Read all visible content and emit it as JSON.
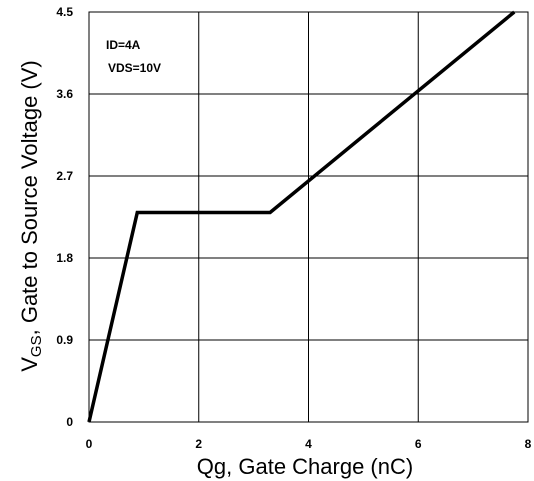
{
  "chart_data": {
    "type": "line",
    "xlabel": "Qg, Gate Charge (nC)",
    "ylabel": {
      "prefix": "V",
      "subscript": "GS",
      "suffix": ", Gate to Source Voltage (V)"
    },
    "xlim": [
      0,
      8
    ],
    "ylim": [
      0,
      4.5
    ],
    "x_ticks": [
      "0",
      "2",
      "4",
      "6",
      "8"
    ],
    "y_ticks": [
      "0",
      "0.9",
      "1.8",
      "2.7",
      "3.6",
      "4.5"
    ],
    "x_tick_values": [
      0,
      2,
      4,
      6,
      8
    ],
    "y_tick_values": [
      0,
      0.9,
      1.8,
      2.7,
      3.6,
      4.5
    ],
    "grid": true,
    "annotations": [
      "ID=4A",
      "VDS=10V"
    ],
    "series": [
      {
        "x": [
          0,
          0.88,
          3.3,
          7.75
        ],
        "y": [
          0,
          2.3,
          2.3,
          4.5
        ]
      }
    ]
  }
}
